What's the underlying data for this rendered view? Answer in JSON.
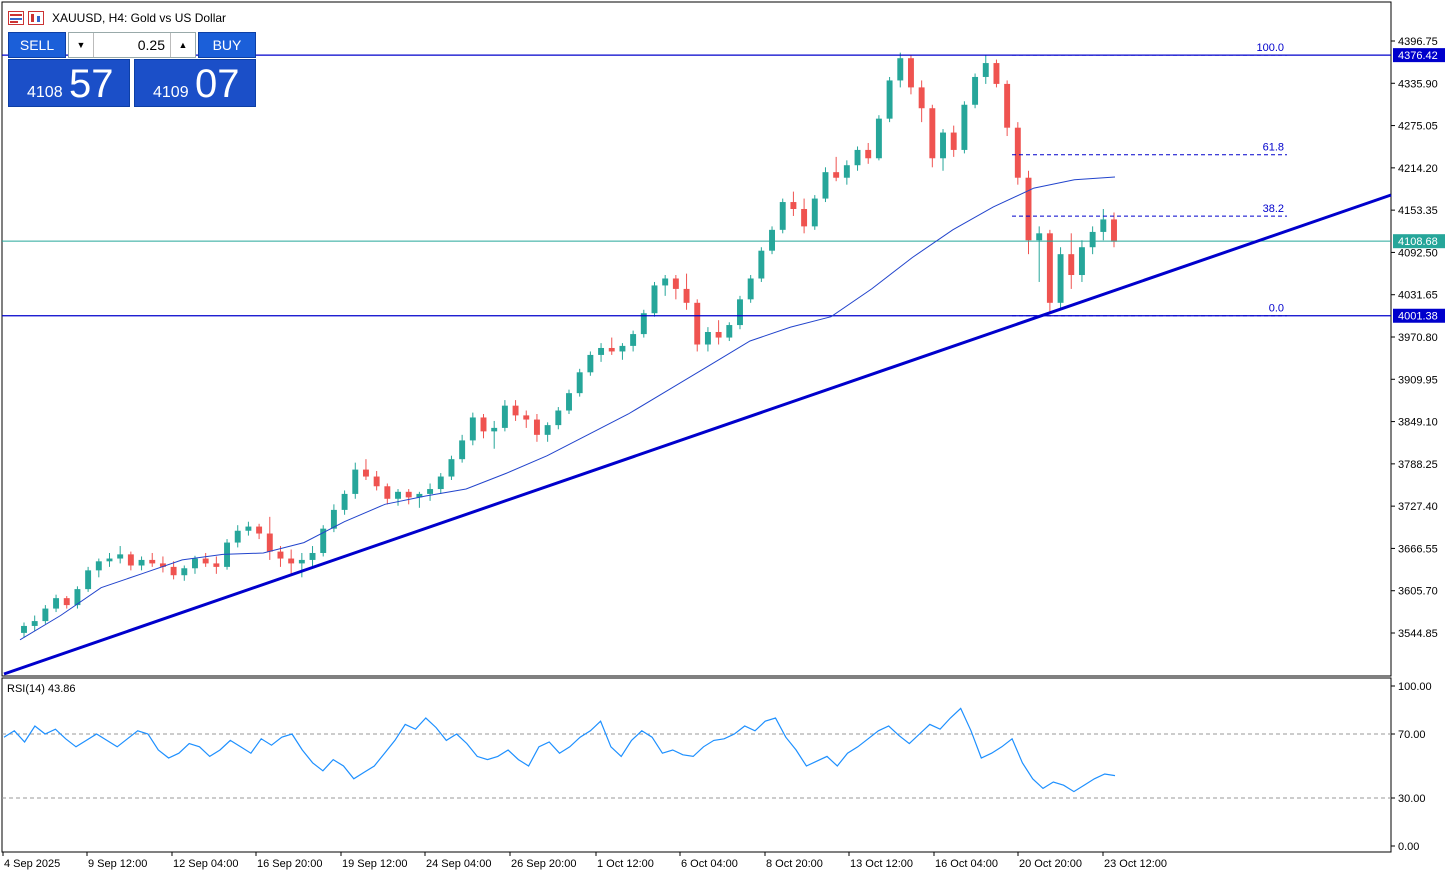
{
  "header": {
    "symbol_line": "XAUUSD, H4:  Gold vs US Dollar"
  },
  "trade_panel": {
    "sell_label": "SELL",
    "buy_label": "BUY",
    "volume": "0.25",
    "sell_price_small": "4108",
    "sell_price_big": "57",
    "buy_price_small": "4109",
    "buy_price_big": "07"
  },
  "colors": {
    "bull": "#26a69a",
    "bear": "#ef5350",
    "blue": "#0000cc",
    "ma": "#2244cc",
    "rsi": "#1e90ff",
    "bid_line": "#26a69a"
  },
  "chart_data": [
    {
      "type": "candlestick",
      "symbol": "XAUUSD",
      "timeframe": "H4",
      "ylim": [
        3484,
        4420
      ],
      "y_ticks": [
        "4396.75",
        "4335.90",
        "4275.05",
        "4214.20",
        "4153.35",
        "4092.50",
        "4031.65",
        "3970.80",
        "3909.95",
        "3849.10",
        "3788.25",
        "3727.40",
        "3666.55",
        "3605.70",
        "3544.85"
      ],
      "x_ticks": [
        "4 Sep 2025",
        "9 Sep 12:00",
        "12 Sep 04:00",
        "16 Sep 20:00",
        "19 Sep 12:00",
        "24 Sep 04:00",
        "26 Sep 20:00",
        "1 Oct 12:00",
        "6 Oct 04:00",
        "8 Oct 20:00",
        "13 Oct 12:00",
        "16 Oct 04:00",
        "20 Oct 20:00",
        "23 Oct 12:00"
      ],
      "price_labels": [
        {
          "value": 4376.42,
          "text": "4376.42"
        },
        {
          "value": 4108.68,
          "text": "4108.68"
        },
        {
          "value": 4001.38,
          "text": "4001.38"
        }
      ],
      "fibonacci": {
        "high": 4376.42,
        "low": 4001.38,
        "levels": [
          {
            "level": "100.0",
            "price": 4376.42
          },
          {
            "level": "61.8",
            "price": 4233.1
          },
          {
            "level": "38.2",
            "price": 4144.7
          },
          {
            "level": "0.0",
            "price": 4001.38
          }
        ]
      },
      "horizontal_lines": [
        4376.42,
        4001.38
      ],
      "trendline": {
        "from": [
          "4 Sep 2025",
          3484
        ],
        "to": [
          "23 Oct 12:00",
          4170
        ]
      },
      "moving_average": [
        3535,
        3570,
        3610,
        3630,
        3650,
        3658,
        3660,
        3675,
        3705,
        3730,
        3742,
        3752,
        3775,
        3800,
        3830,
        3860,
        3895,
        3930,
        3965,
        3985,
        4000,
        4040,
        4085,
        4125,
        4158,
        4185,
        4197,
        4201
      ],
      "candles_ohlc": [
        [
          3545,
          3560,
          3538,
          3555
        ],
        [
          3555,
          3570,
          3548,
          3562
        ],
        [
          3562,
          3585,
          3558,
          3580
        ],
        [
          3580,
          3600,
          3575,
          3595
        ],
        [
          3595,
          3598,
          3580,
          3585
        ],
        [
          3585,
          3612,
          3580,
          3608
        ],
        [
          3608,
          3640,
          3604,
          3635
        ],
        [
          3635,
          3652,
          3625,
          3648
        ],
        [
          3648,
          3660,
          3640,
          3652
        ],
        [
          3652,
          3670,
          3645,
          3658
        ],
        [
          3658,
          3662,
          3635,
          3642
        ],
        [
          3642,
          3655,
          3635,
          3650
        ],
        [
          3650,
          3660,
          3640,
          3645
        ],
        [
          3645,
          3655,
          3632,
          3640
        ],
        [
          3640,
          3648,
          3622,
          3628
        ],
        [
          3628,
          3642,
          3620,
          3638
        ],
        [
          3638,
          3656,
          3630,
          3652
        ],
        [
          3652,
          3660,
          3640,
          3645
        ],
        [
          3645,
          3655,
          3630,
          3640
        ],
        [
          3640,
          3680,
          3636,
          3675
        ],
        [
          3675,
          3700,
          3668,
          3692
        ],
        [
          3692,
          3705,
          3685,
          3698
        ],
        [
          3698,
          3702,
          3680,
          3688
        ],
        [
          3688,
          3712,
          3650,
          3662
        ],
        [
          3662,
          3670,
          3640,
          3652
        ],
        [
          3652,
          3665,
          3630,
          3645
        ],
        [
          3645,
          3660,
          3625,
          3650
        ],
        [
          3650,
          3670,
          3640,
          3660
        ],
        [
          3660,
          3700,
          3655,
          3695
        ],
        [
          3695,
          3730,
          3690,
          3722
        ],
        [
          3722,
          3750,
          3715,
          3745
        ],
        [
          3745,
          3790,
          3738,
          3780
        ],
        [
          3780,
          3795,
          3765,
          3770
        ],
        [
          3770,
          3778,
          3750,
          3756
        ],
        [
          3756,
          3760,
          3730,
          3738
        ],
        [
          3738,
          3752,
          3728,
          3748
        ],
        [
          3748,
          3752,
          3730,
          3740
        ],
        [
          3740,
          3748,
          3725,
          3745
        ],
        [
          3745,
          3760,
          3735,
          3752
        ],
        [
          3752,
          3775,
          3745,
          3770
        ],
        [
          3770,
          3800,
          3765,
          3795
        ],
        [
          3795,
          3830,
          3790,
          3822
        ],
        [
          3822,
          3862,
          3815,
          3855
        ],
        [
          3855,
          3860,
          3825,
          3835
        ],
        [
          3835,
          3850,
          3810,
          3840
        ],
        [
          3840,
          3880,
          3835,
          3872
        ],
        [
          3872,
          3880,
          3850,
          3858
        ],
        [
          3858,
          3865,
          3840,
          3852
        ],
        [
          3852,
          3860,
          3820,
          3830
        ],
        [
          3830,
          3848,
          3820,
          3844
        ],
        [
          3844,
          3870,
          3838,
          3865
        ],
        [
          3865,
          3895,
          3860,
          3890
        ],
        [
          3890,
          3925,
          3885,
          3920
        ],
        [
          3920,
          3950,
          3915,
          3945
        ],
        [
          3945,
          3962,
          3935,
          3955
        ],
        [
          3955,
          3970,
          3945,
          3950
        ],
        [
          3950,
          3962,
          3938,
          3958
        ],
        [
          3958,
          3980,
          3950,
          3975
        ],
        [
          3975,
          4010,
          3970,
          4005
        ],
        [
          4005,
          4050,
          4000,
          4045
        ],
        [
          4045,
          4060,
          4030,
          4055
        ],
        [
          4055,
          4060,
          4025,
          4040
        ],
        [
          4040,
          4062,
          4010,
          4020
        ],
        [
          4020,
          4025,
          3950,
          3960
        ],
        [
          3960,
          3985,
          3950,
          3978
        ],
        [
          3978,
          3995,
          3960,
          3970
        ],
        [
          3970,
          3992,
          3965,
          3988
        ],
        [
          3988,
          4030,
          3982,
          4025
        ],
        [
          4025,
          4060,
          4020,
          4055
        ],
        [
          4055,
          4100,
          4050,
          4095
        ],
        [
          4095,
          4130,
          4090,
          4125
        ],
        [
          4125,
          4170,
          4120,
          4165
        ],
        [
          4165,
          4180,
          4145,
          4155
        ],
        [
          4155,
          4170,
          4120,
          4130
        ],
        [
          4130,
          4175,
          4125,
          4170
        ],
        [
          4170,
          4215,
          4165,
          4208
        ],
        [
          4208,
          4230,
          4195,
          4200
        ],
        [
          4200,
          4225,
          4190,
          4218
        ],
        [
          4218,
          4245,
          4210,
          4240
        ],
        [
          4240,
          4250,
          4220,
          4228
        ],
        [
          4228,
          4290,
          4225,
          4285
        ],
        [
          4285,
          4345,
          4280,
          4340
        ],
        [
          4340,
          4380,
          4330,
          4372
        ],
        [
          4372,
          4376,
          4320,
          4330
        ],
        [
          4330,
          4340,
          4280,
          4300
        ],
        [
          4300,
          4305,
          4215,
          4228
        ],
        [
          4228,
          4270,
          4210,
          4265
        ],
        [
          4265,
          4275,
          4230,
          4240
        ],
        [
          4240,
          4310,
          4235,
          4305
        ],
        [
          4305,
          4350,
          4300,
          4345
        ],
        [
          4345,
          4376,
          4335,
          4365
        ],
        [
          4365,
          4370,
          4330,
          4335
        ],
        [
          4335,
          4340,
          4260,
          4272
        ],
        [
          4272,
          4280,
          4190,
          4200
        ],
        [
          4200,
          4210,
          4090,
          4110
        ],
        [
          4110,
          4130,
          4050,
          4120
        ],
        [
          4120,
          4125,
          4005,
          4020
        ],
        [
          4020,
          4100,
          4010,
          4090
        ],
        [
          4090,
          4120,
          4040,
          4060
        ],
        [
          4060,
          4110,
          4050,
          4100
        ],
        [
          4100,
          4130,
          4090,
          4122
        ],
        [
          4122,
          4155,
          4110,
          4140
        ],
        [
          4140,
          4150,
          4100,
          4108
        ]
      ]
    },
    {
      "type": "line",
      "name": "RSI(14) 43.86",
      "indicator": "RSI(14)",
      "value_label": "43.86",
      "ylim": [
        0,
        100
      ],
      "y_ticks": [
        "100.00",
        "70.00",
        "30.00",
        "0.00"
      ],
      "levels": [
        70,
        30
      ],
      "values": [
        68,
        72,
        65,
        75,
        70,
        73,
        67,
        62,
        66,
        70,
        66,
        62,
        67,
        72,
        70,
        60,
        55,
        58,
        64,
        62,
        56,
        60,
        66,
        62,
        58,
        67,
        63,
        68,
        70,
        60,
        52,
        47,
        54,
        50,
        42,
        46,
        50,
        58,
        66,
        76,
        73,
        80,
        74,
        66,
        70,
        64,
        56,
        54,
        56,
        60,
        54,
        50,
        62,
        65,
        58,
        62,
        68,
        72,
        78,
        62,
        56,
        66,
        72,
        68,
        58,
        60,
        57,
        56,
        62,
        66,
        67,
        70,
        75,
        72,
        78,
        80,
        68,
        60,
        50,
        53,
        56,
        50,
        58,
        62,
        67,
        72,
        75,
        69,
        64,
        70,
        76,
        73,
        80,
        86,
        72,
        55,
        58,
        62,
        67,
        52,
        42,
        36,
        40,
        38,
        34,
        38,
        42,
        45,
        44
      ]
    }
  ]
}
